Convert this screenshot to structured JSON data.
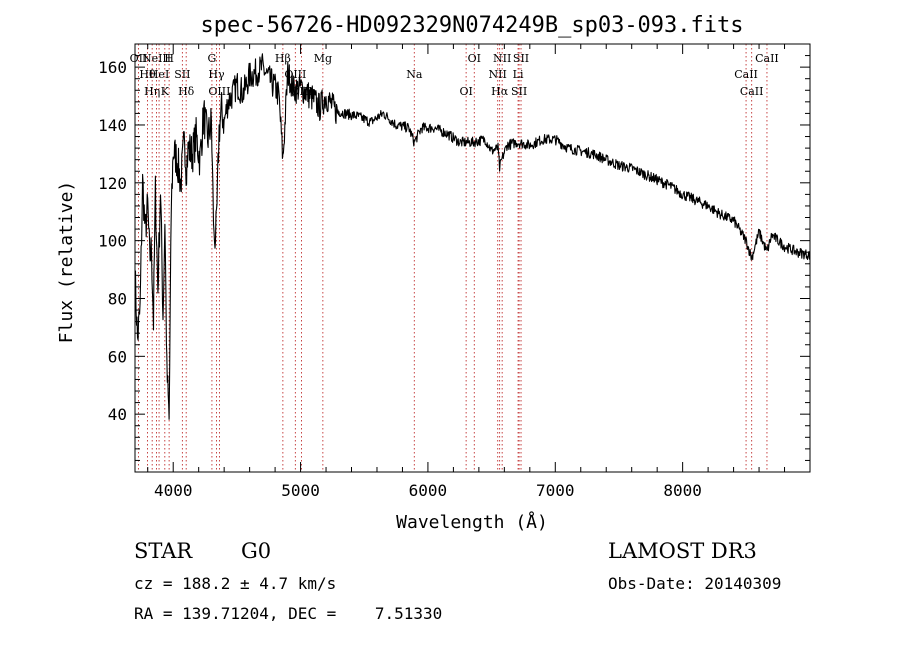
{
  "chart_data": {
    "type": "line",
    "title": "spec-56726-HD092329N074249B_sp03-093.fits",
    "xlabel": "Wavelength (Å)",
    "ylabel": "Flux (relative)",
    "xlim": [
      3700,
      9000
    ],
    "ylim": [
      20,
      168
    ],
    "grid": false,
    "x_ticks": [
      4000,
      5000,
      6000,
      7000,
      8000
    ],
    "y_ticks": [
      40,
      60,
      80,
      100,
      120,
      140,
      160
    ],
    "series": [
      {
        "x": [
          3700,
          3720,
          3740,
          3760,
          3780,
          3800,
          3815,
          3830,
          3845,
          3860,
          3880,
          3900,
          3920,
          3935,
          3950,
          3968,
          3985,
          4000,
          4030,
          4060,
          4090,
          4101,
          4120,
          4150,
          4180,
          4210,
          4240,
          4270,
          4300,
          4320,
          4340,
          4360,
          4380,
          4400,
          4430,
          4460,
          4500,
          4550,
          4600,
          4650,
          4700,
          4750,
          4800,
          4830,
          4861,
          4900,
          4950,
          5000,
          5050,
          5100,
          5150,
          5200,
          5270,
          5350,
          5450,
          5550,
          5650,
          5750,
          5850,
          5893,
          5950,
          6050,
          6150,
          6250,
          6350,
          6450,
          6500,
          6550,
          6563,
          6580,
          6620,
          6700,
          6800,
          6900,
          7000,
          7100,
          7200,
          7300,
          7400,
          7500,
          7600,
          7700,
          7800,
          7900,
          8000,
          8100,
          8200,
          8300,
          8400,
          8498,
          8542,
          8600,
          8662,
          8700,
          8800,
          8900,
          9000
        ],
        "y": [
          88,
          66,
          76,
          120,
          103,
          112,
          94,
          97,
          72,
          117,
          83,
          118,
          74,
          108,
          55,
          38,
          112,
          131,
          128,
          120,
          136,
          125,
          132,
          130,
          136,
          128,
          144,
          135,
          141,
          100,
          104,
          138,
          145,
          141,
          148,
          150,
          154,
          151,
          157,
          158,
          160,
          156,
          153,
          150,
          128,
          158,
          152,
          153,
          151,
          149,
          146,
          150,
          145,
          144,
          143,
          141,
          144,
          140,
          139,
          134,
          139,
          139,
          137,
          134,
          134,
          135,
          131,
          132,
          125,
          128,
          133,
          134,
          133,
          135,
          135,
          132,
          131,
          130,
          128,
          126,
          125,
          123,
          121,
          119,
          116,
          114,
          112,
          109,
          107,
          100,
          94,
          103,
          96,
          102,
          98,
          96,
          95
        ]
      }
    ],
    "line_markers": [
      {
        "wl": 3727,
        "label": "OII"
      },
      {
        "wl": 3798,
        "label": "Hθ"
      },
      {
        "wl": 3835,
        "label": "Hη"
      },
      {
        "wl": 3869,
        "label": "NeIII"
      },
      {
        "wl": 3889,
        "label": "HeI"
      },
      {
        "wl": 3934,
        "label": "K"
      },
      {
        "wl": 3968,
        "label": "H"
      },
      {
        "wl": 4072,
        "label": "SII"
      },
      {
        "wl": 4102,
        "label": "Hδ"
      },
      {
        "wl": 4304,
        "label": "G"
      },
      {
        "wl": 4340,
        "label": "Hγ"
      },
      {
        "wl": 4363,
        "label": "OIII"
      },
      {
        "wl": 4861,
        "label": "Hβ"
      },
      {
        "wl": 4959,
        "label": "OIII"
      },
      {
        "wl": 5007,
        "label": "OIII"
      },
      {
        "wl": 5175,
        "label": "Mg"
      },
      {
        "wl": 5893,
        "label": "Na"
      },
      {
        "wl": 6300,
        "label": "OI"
      },
      {
        "wl": 6364,
        "label": "OI"
      },
      {
        "wl": 6548,
        "label": "NII"
      },
      {
        "wl": 6563,
        "label": "Hα"
      },
      {
        "wl": 6583,
        "label": "NII"
      },
      {
        "wl": 6708,
        "label": "Li"
      },
      {
        "wl": 6716,
        "label": "SII"
      },
      {
        "wl": 6731,
        "label": "SII"
      },
      {
        "wl": 8498,
        "label": "CaII"
      },
      {
        "wl": 8542,
        "label": "CaII"
      },
      {
        "wl": 8662,
        "label": "CaII"
      }
    ],
    "marker_color": "#c03030"
  },
  "footer": {
    "class_label": "STAR",
    "subclass": "G0",
    "survey": "LAMOST DR3",
    "cz": "cz = 188.2 ± 4.7 km/s",
    "obs_date": "Obs-Date: 20140309",
    "coords": "RA = 139.71204, DEC =    7.51330"
  }
}
